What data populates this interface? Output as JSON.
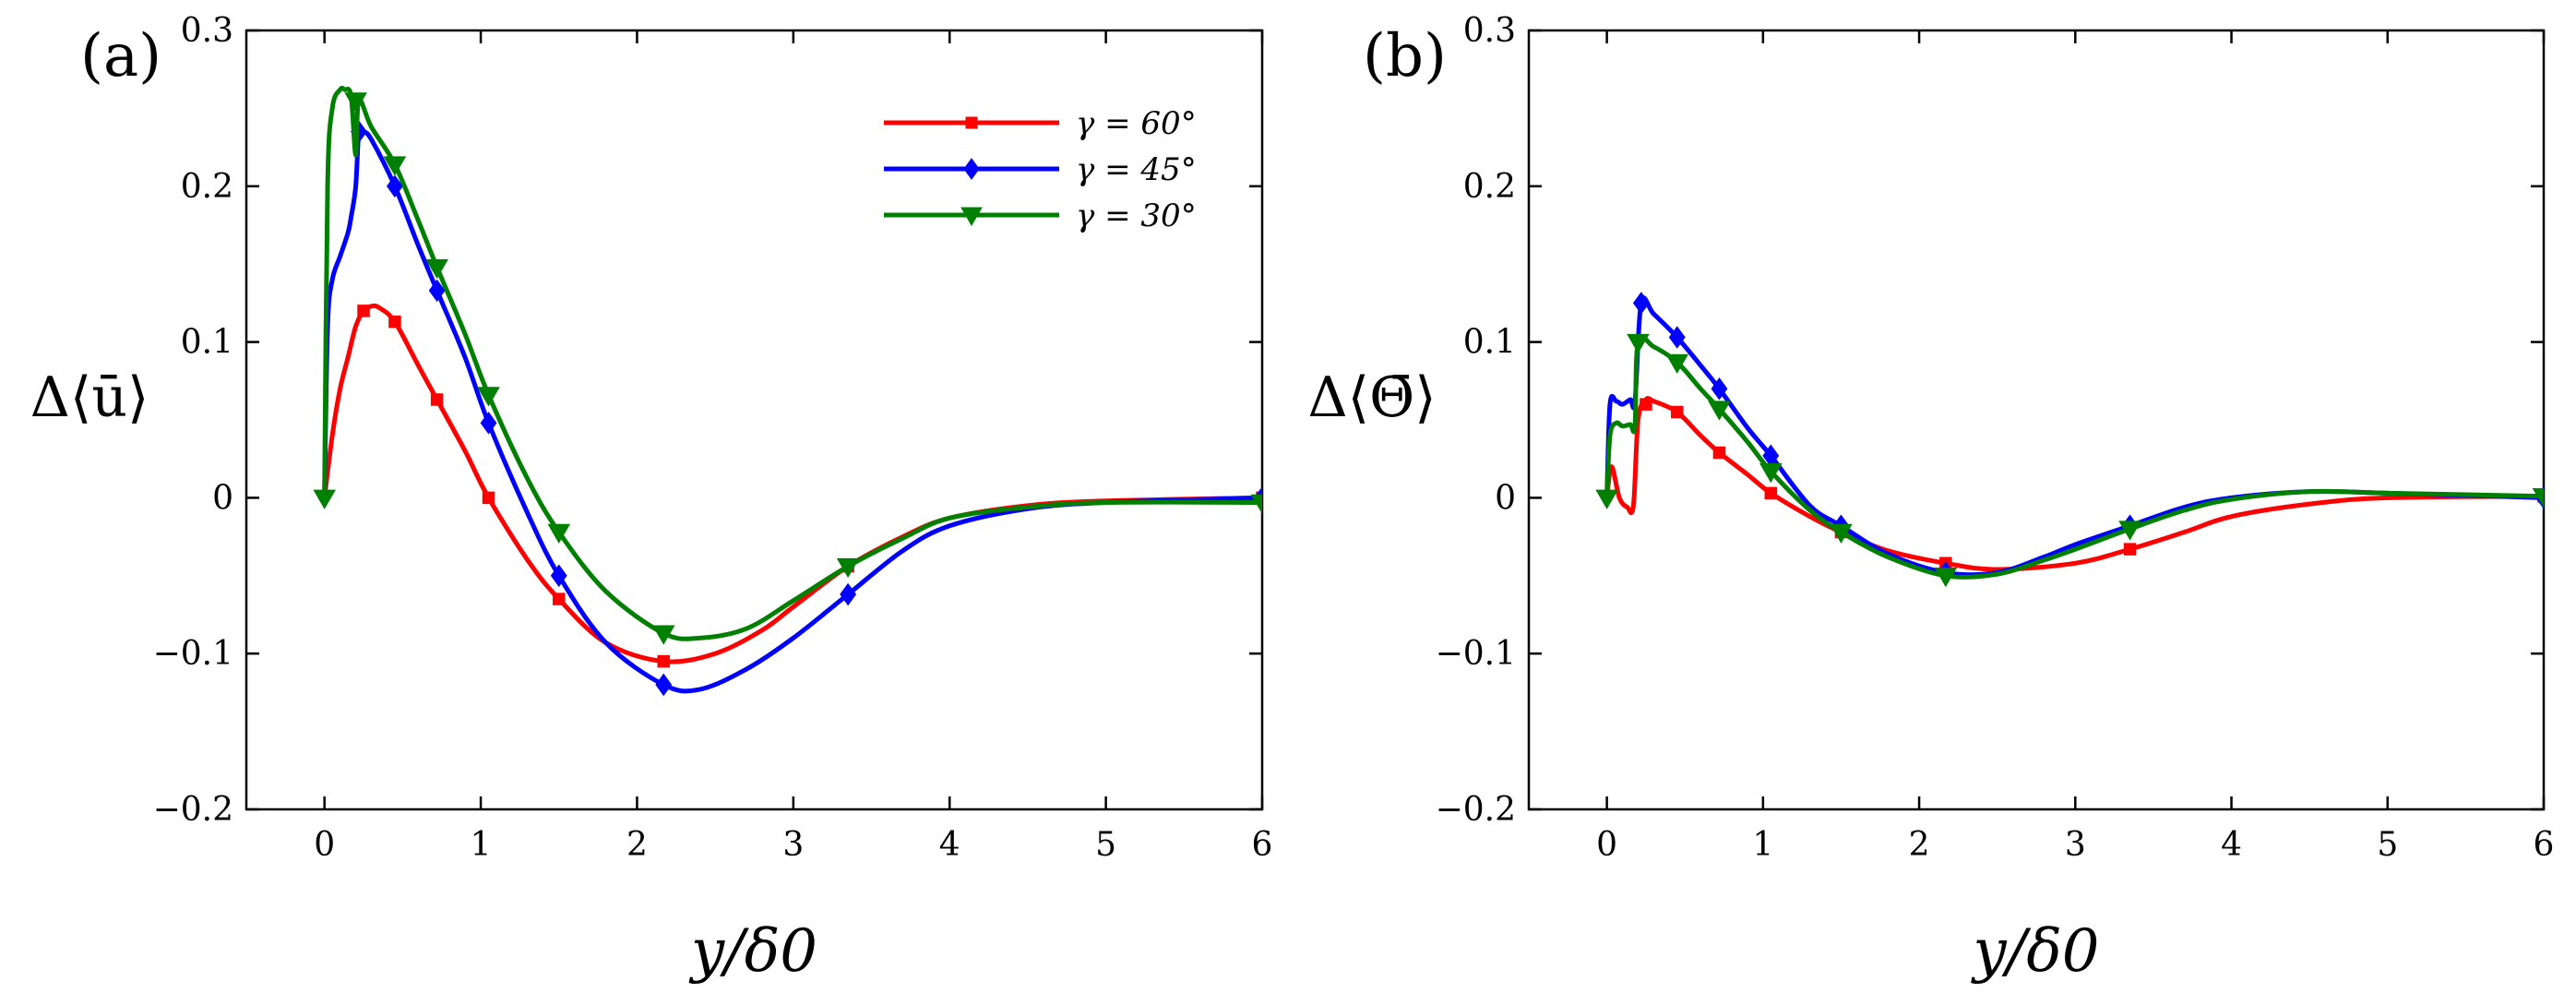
{
  "chart_data": [
    {
      "type": "line",
      "panel_label": "(a)",
      "xlabel": "y/δ0",
      "ylabel": "Δ⟨ū⟩",
      "xlim": [
        -0.5,
        6
      ],
      "ylim": [
        -0.2,
        0.3
      ],
      "xticks": [
        0,
        1,
        2,
        3,
        4,
        5,
        6
      ],
      "yticks": [
        -0.2,
        -0.1,
        0,
        0.1,
        0.2,
        0.3
      ],
      "legend_position": "top-right",
      "series": [
        {
          "name": "γ = 60°",
          "color": "#ff0000",
          "marker": "square",
          "x": [
            0,
            0.05,
            0.1,
            0.15,
            0.2,
            0.25,
            0.3,
            0.35,
            0.45,
            0.6,
            0.72,
            0.9,
            1.05,
            1.3,
            1.5,
            1.8,
            2.17,
            2.5,
            2.8,
            3.0,
            3.35,
            3.7,
            4.0,
            4.5,
            5.0,
            6.0
          ],
          "y": [
            0,
            0.04,
            0.07,
            0.09,
            0.11,
            0.12,
            0.123,
            0.122,
            0.113,
            0.085,
            0.063,
            0.03,
            0.0,
            -0.04,
            -0.065,
            -0.093,
            -0.105,
            -0.1,
            -0.085,
            -0.07,
            -0.044,
            -0.025,
            -0.013,
            -0.005,
            -0.002,
            0.0
          ],
          "marker_x": [
            0.25,
            0.45,
            0.72,
            1.05,
            1.5,
            2.17,
            3.35,
            6.0
          ],
          "marker_y": [
            0.12,
            0.113,
            0.063,
            0.0,
            -0.065,
            -0.105,
            -0.044,
            0.0
          ]
        },
        {
          "name": "γ = 45°",
          "color": "#0000ff",
          "marker": "diamond",
          "x": [
            0,
            0.02,
            0.05,
            0.1,
            0.15,
            0.17,
            0.2,
            0.22,
            0.25,
            0.3,
            0.45,
            0.6,
            0.72,
            0.9,
            1.05,
            1.3,
            1.5,
            1.8,
            2.17,
            2.4,
            2.7,
            3.0,
            3.35,
            3.7,
            4.0,
            4.5,
            5.0,
            6.0
          ],
          "y": [
            0,
            0.11,
            0.14,
            0.155,
            0.17,
            0.18,
            0.2,
            0.235,
            0.235,
            0.23,
            0.2,
            0.162,
            0.133,
            0.09,
            0.048,
            -0.01,
            -0.05,
            -0.093,
            -0.12,
            -0.123,
            -0.11,
            -0.09,
            -0.062,
            -0.034,
            -0.018,
            -0.007,
            -0.003,
            0.0
          ],
          "marker_x": [
            0.22,
            0.45,
            0.72,
            1.05,
            1.5,
            2.17,
            3.35,
            6.0
          ],
          "marker_y": [
            0.235,
            0.2,
            0.133,
            0.048,
            -0.05,
            -0.12,
            -0.062,
            0.0
          ]
        },
        {
          "name": "γ = 30°",
          "color": "#008000",
          "marker": "triangle-down",
          "x": [
            0,
            0.02,
            0.05,
            0.1,
            0.13,
            0.17,
            0.2,
            0.22,
            0.3,
            0.45,
            0.6,
            0.72,
            0.9,
            1.05,
            1.3,
            1.5,
            1.8,
            2.17,
            2.4,
            2.7,
            3.0,
            3.35,
            3.7,
            4.0,
            4.5,
            5.0,
            6.0
          ],
          "y": [
            0,
            0.2,
            0.25,
            0.262,
            0.262,
            0.258,
            0.22,
            0.255,
            0.238,
            0.214,
            0.178,
            0.148,
            0.105,
            0.066,
            0.012,
            -0.022,
            -0.06,
            -0.087,
            -0.09,
            -0.084,
            -0.066,
            -0.044,
            -0.026,
            -0.013,
            -0.006,
            -0.003,
            -0.003
          ],
          "marker_x": [
            0,
            0.2,
            0.45,
            0.72,
            1.05,
            1.5,
            2.17,
            3.35,
            6.0
          ],
          "marker_y": [
            0,
            0.255,
            0.214,
            0.148,
            0.066,
            -0.022,
            -0.087,
            -0.044,
            -0.003
          ]
        }
      ]
    },
    {
      "type": "line",
      "panel_label": "(b)",
      "xlabel": "y/δ0",
      "ylabel": "Δ⟨Θ̄⟩",
      "xlim": [
        -0.5,
        6
      ],
      "ylim": [
        -0.2,
        0.3
      ],
      "xticks": [
        0,
        1,
        2,
        3,
        4,
        5,
        6
      ],
      "yticks": [
        -0.2,
        -0.1,
        0,
        0.1,
        0.2,
        0.3
      ],
      "series": [
        {
          "name": "γ = 60°",
          "color": "#ff0000",
          "marker": "square",
          "x": [
            0,
            0.03,
            0.08,
            0.13,
            0.17,
            0.2,
            0.25,
            0.3,
            0.45,
            0.6,
            0.72,
            0.9,
            1.05,
            1.3,
            1.5,
            1.8,
            2.17,
            2.5,
            3.0,
            3.35,
            3.7,
            4.0,
            4.5,
            5.0,
            6.0
          ],
          "y": [
            0,
            0.02,
            0.0,
            -0.006,
            -0.005,
            0.05,
            0.063,
            0.062,
            0.055,
            0.04,
            0.029,
            0.015,
            0.003,
            -0.012,
            -0.022,
            -0.034,
            -0.042,
            -0.046,
            -0.042,
            -0.033,
            -0.022,
            -0.012,
            -0.004,
            0.0,
            0.001
          ],
          "marker_x": [
            0.25,
            0.45,
            0.72,
            1.05,
            1.5,
            2.17,
            3.35,
            6.0
          ],
          "marker_y": [
            0.06,
            0.055,
            0.029,
            0.003,
            -0.022,
            -0.042,
            -0.033,
            0.001
          ]
        },
        {
          "name": "γ = 45°",
          "color": "#0000ff",
          "marker": "diamond",
          "x": [
            0,
            0.02,
            0.06,
            0.1,
            0.15,
            0.18,
            0.22,
            0.3,
            0.45,
            0.6,
            0.72,
            0.9,
            1.05,
            1.3,
            1.5,
            1.8,
            2.17,
            2.5,
            2.8,
            3.0,
            3.35,
            3.7,
            4.0,
            4.5,
            5.0,
            6.0
          ],
          "y": [
            0,
            0.06,
            0.062,
            0.06,
            0.063,
            0.062,
            0.125,
            0.118,
            0.103,
            0.085,
            0.07,
            0.045,
            0.027,
            -0.005,
            -0.018,
            -0.036,
            -0.048,
            -0.048,
            -0.038,
            -0.03,
            -0.018,
            -0.006,
            0.0,
            0.004,
            0.003,
            0.0
          ],
          "marker_x": [
            0.22,
            0.45,
            0.72,
            1.05,
            1.5,
            2.17,
            3.35,
            6.0
          ],
          "marker_y": [
            0.125,
            0.103,
            0.07,
            0.027,
            -0.018,
            -0.048,
            -0.018,
            0.0
          ]
        },
        {
          "name": "γ = 30°",
          "color": "#008000",
          "marker": "triangle-down",
          "x": [
            0,
            0.02,
            0.06,
            0.1,
            0.15,
            0.18,
            0.2,
            0.3,
            0.45,
            0.6,
            0.72,
            0.9,
            1.05,
            1.3,
            1.5,
            1.8,
            2.17,
            2.5,
            2.8,
            3.0,
            3.35,
            3.7,
            4.0,
            4.5,
            5.0,
            6.0
          ],
          "y": [
            0,
            0.04,
            0.048,
            0.046,
            0.047,
            0.046,
            0.1,
            0.097,
            0.087,
            0.07,
            0.057,
            0.036,
            0.017,
            -0.008,
            -0.022,
            -0.038,
            -0.05,
            -0.049,
            -0.04,
            -0.033,
            -0.02,
            -0.008,
            -0.001,
            0.004,
            0.003,
            0.001
          ],
          "marker_x": [
            0,
            0.2,
            0.45,
            0.72,
            1.05,
            1.5,
            2.17,
            3.35,
            6.0
          ],
          "marker_y": [
            0,
            0.1,
            0.087,
            0.057,
            0.017,
            -0.022,
            -0.05,
            -0.02,
            0.001
          ]
        }
      ]
    }
  ]
}
